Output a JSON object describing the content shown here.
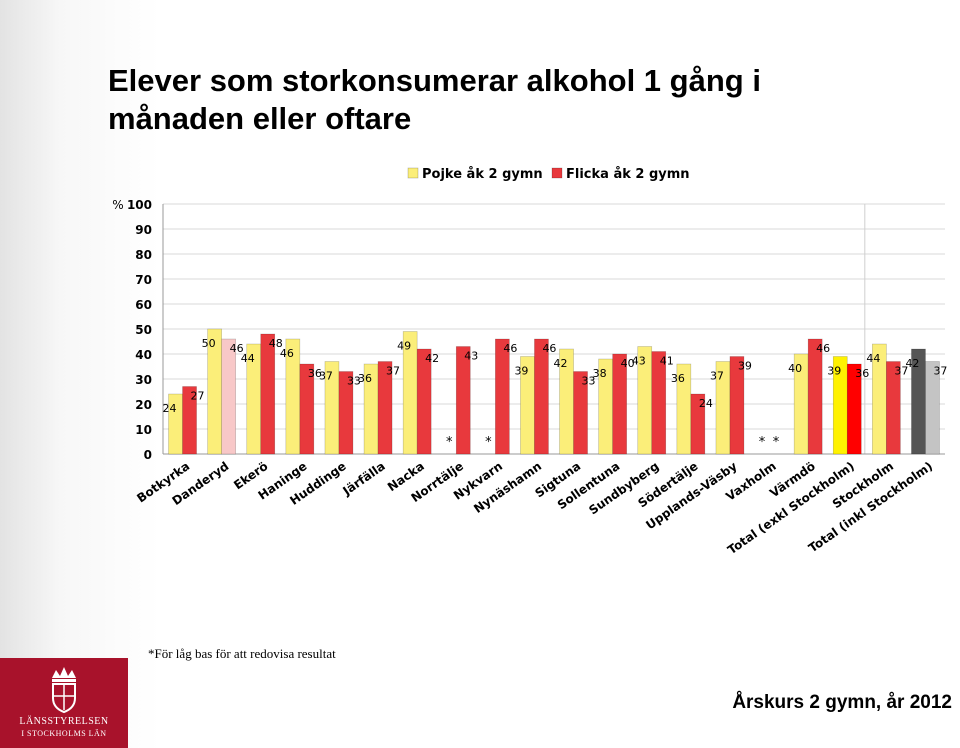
{
  "title": "Elever som storkonsumerar alkohol 1 gång i\nmånaden eller oftare",
  "footnote": "*För låg bas för att redovisa resultat",
  "subtitle": "Årskurs 2 gymn, år 2012",
  "logo": {
    "line1": "LÄNSSTYRELSEN",
    "line2": "I STOCKHOLMS LÄN"
  },
  "colors": {
    "pojke": "#fbee79",
    "flicka": "#e8393d",
    "danderyd_flicka": "#f8c8c8",
    "total_exkl_pojke": "#fff200",
    "total_exkl_flicka": "#ff0000",
    "total_inkl_pojke": "#555555",
    "total_inkl_flicka": "#c4c4c4"
  },
  "chart_data": {
    "type": "bar",
    "ylabel": "%",
    "ylim": [
      0,
      100
    ],
    "yticks": [
      0,
      10,
      20,
      30,
      40,
      50,
      60,
      70,
      80,
      90,
      100
    ],
    "legend_position": "top-right",
    "categories": [
      "Botkyrka",
      "Danderyd",
      "Ekerö",
      "Haninge",
      "Huddinge",
      "Järfälla",
      "Nacka",
      "Norrtälje",
      "Nykvarn",
      "Nynäshamn",
      "Sigtuna",
      "Sollentuna",
      "Sundbyberg",
      "Södertälje",
      "Upplands-Väsby",
      "Vaxholm",
      "Värmdö",
      "Total (exkl Stockholm)",
      "Stockholm",
      "Total (inkl Stockholm)"
    ],
    "series": [
      {
        "name": "Pojke åk 2 gymn",
        "values": [
          24,
          50,
          44,
          46,
          37,
          36,
          49,
          null,
          null,
          39,
          42,
          38,
          43,
          36,
          37,
          null,
          40,
          39,
          44,
          42
        ]
      },
      {
        "name": "Flicka åk 2 gymn",
        "values": [
          27,
          46,
          48,
          36,
          33,
          37,
          42,
          43,
          46,
          46,
          33,
          40,
          41,
          24,
          39,
          null,
          46,
          36,
          37,
          37
        ]
      }
    ],
    "missing_marker": "*"
  }
}
